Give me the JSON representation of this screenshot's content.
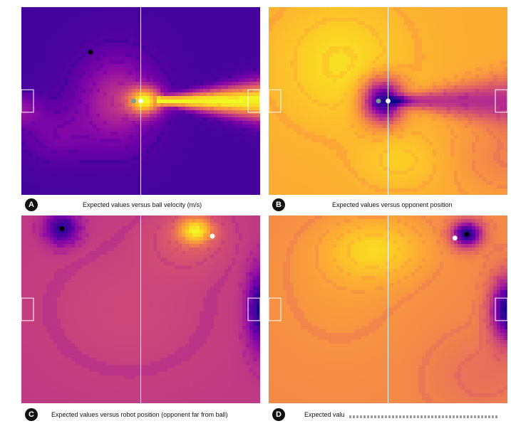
{
  "colors": {
    "plasma_scale": [
      "#0d0887",
      "#3b049a",
      "#6a00a8",
      "#900da4",
      "#b12a90",
      "#cc4778",
      "#e16462",
      "#f1834c",
      "#fca636",
      "#fcce25",
      "#f0f921"
    ],
    "field_line": "#ffffff",
    "ball_dot": "#ffffff",
    "opponent_dot": "#000000",
    "secondary_dot": "#7b9a9a"
  },
  "chart_data": [
    {
      "type": "heatmap",
      "badge": "A",
      "caption": "Expected values versus ball velocity (m/s)",
      "colormap": "plasma",
      "base_level": 0.12,
      "field": {
        "center_line": true,
        "left_goal_box": true,
        "right_goal_box": true
      },
      "points": [
        {
          "kind": "opponent",
          "color": "#000000",
          "x": 0.29,
          "y": 0.24
        },
        {
          "kind": "ball",
          "color": "#ffffff",
          "x": 0.5,
          "y": 0.5
        },
        {
          "kind": "secondary",
          "color": "#7b9a9a",
          "x": 0.47,
          "y": 0.5
        }
      ],
      "features": [
        {
          "shape": "gaussian",
          "cx": 0.52,
          "cy": 0.5,
          "sx": 0.05,
          "sy": 0.05,
          "amp": 0.75
        },
        {
          "shape": "gaussian",
          "cx": 0.4,
          "cy": 0.5,
          "sx": 0.11,
          "sy": 0.16,
          "amp": 0.3
        },
        {
          "shape": "gaussian",
          "cx": 0.15,
          "cy": 0.68,
          "sx": 0.1,
          "sy": 0.1,
          "amp": 0.12
        },
        {
          "shape": "gaussian",
          "cx": 0.0,
          "cy": 0.55,
          "sx": 0.06,
          "sy": 0.06,
          "amp": 0.18
        },
        {
          "shape": "cone",
          "x0": 0.56,
          "y0": 0.5,
          "x1": 1.0,
          "spread": 0.06,
          "amp": 0.9
        }
      ]
    },
    {
      "type": "heatmap",
      "badge": "B",
      "caption": "Expected values versus opponent position",
      "colormap": "plasma",
      "base_level": 0.82,
      "field": {
        "center_line": true,
        "left_goal_box": true,
        "right_goal_box": true
      },
      "points": [
        {
          "kind": "ball",
          "color": "#ffffff",
          "x": 0.5,
          "y": 0.5
        },
        {
          "kind": "secondary",
          "color": "#7b9a9a",
          "x": 0.46,
          "y": 0.5
        }
      ],
      "features": [
        {
          "shape": "gaussian",
          "cx": 0.3,
          "cy": 0.3,
          "sx": 0.18,
          "sy": 0.22,
          "amp": 0.12
        },
        {
          "shape": "gaussian",
          "cx": 0.55,
          "cy": 0.82,
          "sx": 0.12,
          "sy": 0.1,
          "amp": 0.08
        },
        {
          "shape": "gaussian",
          "cx": 1.0,
          "cy": 0.8,
          "sx": 0.15,
          "sy": 0.15,
          "amp": -0.12
        },
        {
          "shape": "gaussian",
          "cx": 0.48,
          "cy": 0.5,
          "sx": 0.06,
          "sy": 0.08,
          "amp": -0.8
        },
        {
          "shape": "cone",
          "x0": 0.5,
          "y0": 0.5,
          "x1": 1.0,
          "spread": 0.08,
          "amp": -0.4
        }
      ]
    },
    {
      "type": "heatmap",
      "badge": "C",
      "caption": "Expected values versus robot position (opponent far from ball)",
      "colormap": "plasma",
      "base_level": 0.45,
      "field": {
        "center_line": true,
        "left_goal_box": true,
        "right_goal_box": true
      },
      "points": [
        {
          "kind": "opponent",
          "color": "#000000",
          "x": 0.17,
          "y": 0.07
        },
        {
          "kind": "ball",
          "color": "#ffffff",
          "x": 0.8,
          "y": 0.11
        }
      ],
      "features": [
        {
          "shape": "gaussian",
          "cx": 0.17,
          "cy": 0.07,
          "sx": 0.05,
          "sy": 0.06,
          "amp": -0.4
        },
        {
          "shape": "gaussian",
          "cx": 0.73,
          "cy": 0.08,
          "sx": 0.05,
          "sy": 0.05,
          "amp": 0.45
        },
        {
          "shape": "gaussian",
          "cx": 0.7,
          "cy": 0.12,
          "sx": 0.12,
          "sy": 0.12,
          "amp": 0.1
        },
        {
          "shape": "gaussian",
          "cx": 1.0,
          "cy": 0.5,
          "sx": 0.04,
          "sy": 0.15,
          "amp": -0.4
        },
        {
          "shape": "gaussian",
          "cx": 0.45,
          "cy": 0.5,
          "sx": 0.3,
          "sy": 0.3,
          "amp": 0.05
        }
      ]
    },
    {
      "type": "heatmap",
      "badge": "D",
      "caption": "Expected valu",
      "caption_truncated": true,
      "colormap": "plasma",
      "base_level": 0.72,
      "field": {
        "center_line": true,
        "left_goal_box": true,
        "right_goal_box": true
      },
      "points": [
        {
          "kind": "opponent",
          "color": "#000000",
          "x": 0.83,
          "y": 0.1
        },
        {
          "kind": "ball",
          "color": "#ffffff",
          "x": 0.78,
          "y": 0.12
        }
      ],
      "features": [
        {
          "shape": "gaussian",
          "cx": 0.45,
          "cy": 0.18,
          "sx": 0.15,
          "sy": 0.12,
          "amp": 0.18
        },
        {
          "shape": "gaussian",
          "cx": 0.3,
          "cy": 0.4,
          "sx": 0.2,
          "sy": 0.25,
          "amp": 0.05
        },
        {
          "shape": "gaussian",
          "cx": 0.83,
          "cy": 0.1,
          "sx": 0.045,
          "sy": 0.05,
          "amp": -0.7
        },
        {
          "shape": "gaussian",
          "cx": 1.0,
          "cy": 0.5,
          "sx": 0.05,
          "sy": 0.12,
          "amp": -0.7
        },
        {
          "shape": "gaussian",
          "cx": 0.9,
          "cy": 0.85,
          "sx": 0.15,
          "sy": 0.15,
          "amp": -0.08
        }
      ]
    }
  ]
}
